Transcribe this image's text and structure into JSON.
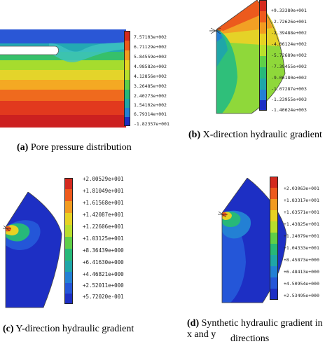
{
  "panels": {
    "a": {
      "caption_letter": "(a)",
      "caption_text": "Pore pressure distribution",
      "colorbar_ticks": [
        "7.57103e+002",
        "6.71129e+002",
        "5.84559e+002",
        "4.98582e+002",
        "4.12856e+002",
        "3.26485e+002",
        "2.40273e+002",
        "1.54102e+002",
        "6.79314e+001",
        "-1.82357e+001"
      ]
    },
    "b": {
      "caption_letter": "(b)",
      "caption_text": "X-direction hydraulic gradient",
      "colorbar_ticks": [
        "+9.33380e+001",
        "-2.72626e+001",
        "-2.39488e+002",
        "-4.06124e+002",
        "-5.72689e+002",
        "-7.39455e+002",
        "-9.06180e+002",
        "-1.07287e+003",
        "-1.23955e+003",
        "-1.40624e+003"
      ]
    },
    "c": {
      "caption_letter": "(c)",
      "caption_text": "Y-direction hydraulic gradient",
      "colorbar_ticks": [
        "+2.00529e+001",
        "+1.81049e+001",
        "+1.61568e+001",
        "+1.42087e+001",
        "+1.22606e+001",
        "+1.03125e+001",
        "+8.36439e+000",
        "+6.41630e+000",
        "+4.46821e+000",
        "+2.52011e+000",
        "+5.72020e-001"
      ]
    },
    "d": {
      "caption_letter": "(d)",
      "caption_text_line1": "Synthetic hydraulic gradient in",
      "caption_text_line2": "x and y",
      "caption_text_line3": "directions",
      "colorbar_ticks": [
        "+2.03063e+001",
        "+1.83317e+001",
        "+1.63571e+001",
        "+1.43825e+001",
        "+1.24079e+001",
        "+1.04333e+001",
        "+8.45873e+000",
        "+6.48413e+000",
        "+4.50954e+000",
        "+2.53495e+000"
      ]
    }
  },
  "colormap": [
    "#d42a1f",
    "#ee5a1c",
    "#f29b20",
    "#e7d223",
    "#b9df2c",
    "#5fcf48",
    "#27b879",
    "#1fa6a8",
    "#2380d4",
    "#2456d8",
    "#1d2fc4"
  ]
}
